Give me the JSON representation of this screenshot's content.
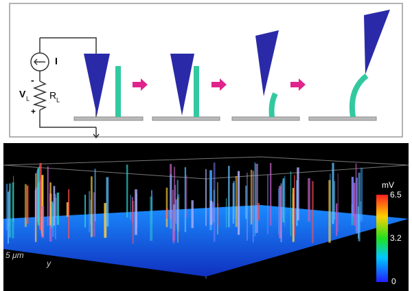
{
  "circuit": {
    "current": "I",
    "voltage": {
      "symbol": "V",
      "subscript": "L"
    },
    "resistor": {
      "symbol": "R",
      "subscript": "L"
    },
    "polarity": [
      "-",
      "+"
    ]
  },
  "map": {
    "colorbar": {
      "unit": "mV",
      "ticks": [
        6.5,
        3.2,
        0
      ]
    },
    "scale_label": "5 μm",
    "axis_label": "y"
  }
}
